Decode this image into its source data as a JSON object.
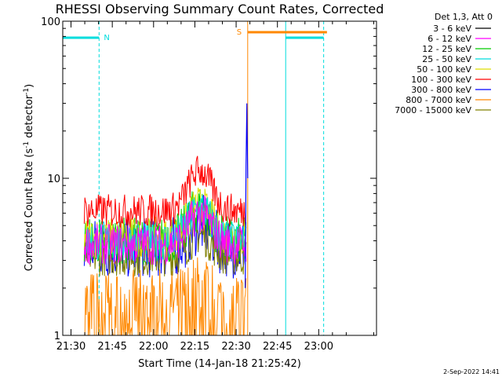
{
  "title": "RHESSI Observing Summary Count Rates, Corrected",
  "footer_date": "2-Sep-2022 14:41",
  "chart_data": {
    "type": "line",
    "title": "RHESSI Observing Summary Count Rates, Corrected",
    "xlabel": "Start Time (14-Jan-18 21:25:42)",
    "ylabel_main": "Corrected Count Rate (s",
    "ylabel_sup1": "-1",
    "ylabel_mid": " detector",
    "ylabel_sup2": "-1",
    "ylabel_end": ")",
    "y_scale": "log",
    "ylim": [
      1,
      100
    ],
    "xlim_minutes": [
      21.45,
      23.35
    ],
    "x_tick_labels": [
      "21:30",
      "21:45",
      "22:00",
      "22:15",
      "22:30",
      "22:45",
      "23:00"
    ],
    "y_tick_labels": [
      "1",
      "10",
      "100"
    ],
    "legend_header": "Det 1,3, Att 0",
    "legend_position": "top-right outside",
    "series": [
      {
        "name": "3 - 6 keV",
        "color": "#000000"
      },
      {
        "name": "6 - 12 keV",
        "color": "#ff00ff"
      },
      {
        "name": "12 - 25 keV",
        "color": "#00cc00"
      },
      {
        "name": "25 - 50 keV",
        "color": "#00dddd"
      },
      {
        "name": "50 - 100 keV",
        "color": "#dddd00"
      },
      {
        "name": "100 - 300 keV",
        "color": "#ff0000"
      },
      {
        "name": "300 - 800 keV",
        "color": "#0000ff"
      },
      {
        "name": "800 - 7000 keV",
        "color": "#ff8800"
      },
      {
        "name": "7000 - 15000 keV",
        "color": "#808000"
      }
    ],
    "annotations": {
      "night_label": "N",
      "saa_label": "S",
      "night_intervals": [
        [
          21.45,
          21.67
        ],
        [
          22.8,
          23.03
        ]
      ],
      "saa_intervals": [
        [
          22.57,
          23.05
        ]
      ]
    }
  }
}
